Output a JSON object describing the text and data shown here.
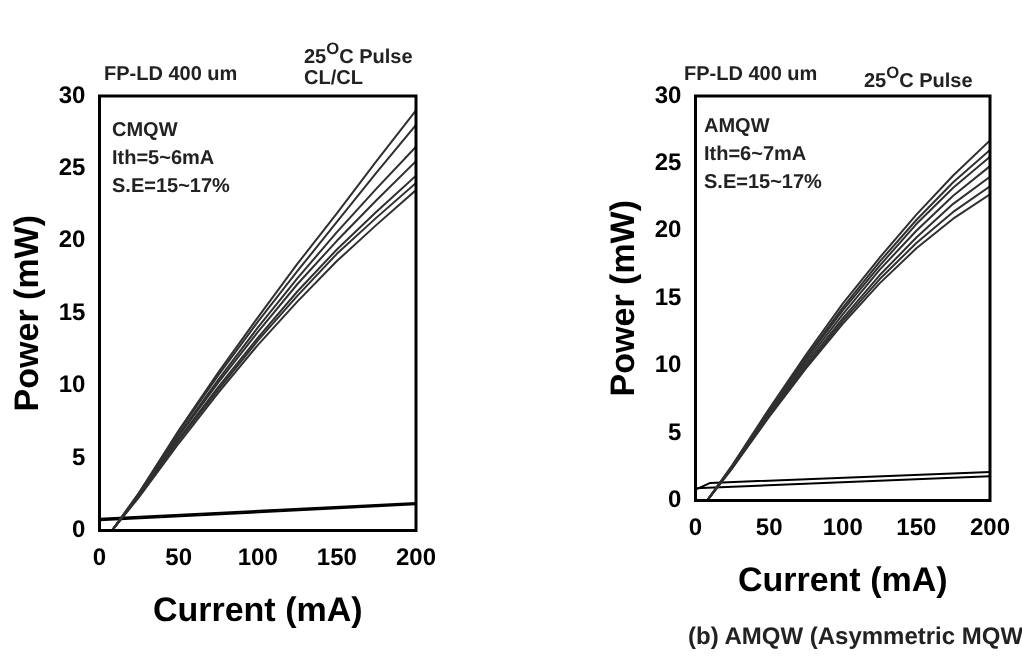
{
  "chart_data": [
    {
      "type": "line",
      "xlabel": "Current (mA)",
      "ylabel": "Power (mW)",
      "xlim": [
        0,
        200
      ],
      "ylim": [
        0,
        30
      ],
      "xticks": [
        0,
        50,
        100,
        150,
        200
      ],
      "yticks": [
        0,
        5,
        10,
        15,
        20,
        25,
        30
      ],
      "grid": false,
      "legend": false,
      "marker": "none",
      "line_style": "solid",
      "annotations": [
        "FP-LD 400 um",
        "25$^{O}$C Pulse",
        "CL/CL",
        "CMQW",
        "Ith=5~6mA",
        "S.E=15~17%"
      ],
      "series": [
        {
          "color": "#303030",
          "x": [
            8,
            25,
            50,
            75,
            100,
            125,
            150,
            175,
            200
          ],
          "values": [
            0,
            2.6,
            6.9,
            10.9,
            14.7,
            18.4,
            21.9,
            25.5,
            29
          ]
        },
        {
          "color": "#303030",
          "x": [
            8,
            25,
            50,
            75,
            100,
            125,
            150,
            175,
            200
          ],
          "values": [
            0,
            2.6,
            6.8,
            10.7,
            14.4,
            17.9,
            21.3,
            24.7,
            28
          ]
        },
        {
          "color": "#303030",
          "x": [
            8,
            25,
            50,
            75,
            100,
            125,
            150,
            175,
            200
          ],
          "values": [
            0,
            2.5,
            6.6,
            10.4,
            14,
            17.4,
            20.6,
            23.6,
            26.5
          ]
        },
        {
          "color": "#303030",
          "x": [
            8,
            25,
            50,
            75,
            100,
            125,
            150,
            175,
            200
          ],
          "values": [
            0,
            2.5,
            6.5,
            10.2,
            13.7,
            17,
            20,
            22.8,
            25.5
          ]
        },
        {
          "color": "#303030",
          "x": [
            8,
            25,
            50,
            75,
            100,
            125,
            150,
            175,
            200
          ],
          "values": [
            0,
            2.4,
            6.3,
            9.9,
            13.3,
            16.5,
            19.4,
            22,
            24.5
          ]
        },
        {
          "color": "#303030",
          "x": [
            8,
            25,
            50,
            75,
            100,
            125,
            150,
            175,
            200
          ],
          "values": [
            0,
            2.4,
            6.2,
            9.7,
            13.1,
            16.2,
            19.1,
            21.6,
            24
          ]
        },
        {
          "color": "#303030",
          "x": [
            8,
            25,
            50,
            75,
            100,
            125,
            150,
            175,
            200
          ],
          "values": [
            0,
            2.3,
            6,
            9.5,
            12.8,
            15.8,
            18.6,
            21.1,
            23.5
          ]
        },
        {
          "color": "#000000",
          "x": [
            0,
            200
          ],
          "values": [
            0.8,
            1.9
          ]
        },
        {
          "color": "#000000",
          "x": [
            0,
            200
          ],
          "values": [
            0.7,
            1.8
          ]
        }
      ]
    },
    {
      "type": "line",
      "xlabel": "Current (mA)",
      "ylabel": "Power (mW)",
      "xlim": [
        0,
        200
      ],
      "ylim": [
        0,
        30
      ],
      "xticks": [
        0,
        50,
        100,
        150,
        200
      ],
      "yticks": [
        0,
        5,
        10,
        15,
        20,
        25,
        30
      ],
      "grid": false,
      "legend": false,
      "marker": "none",
      "line_style": "solid",
      "annotations": [
        "FP-LD 400 um",
        "25$^{O}$C Pulse",
        "AMQW",
        "Ith=6~7mA",
        "S.E=15~17%",
        "(b) AMQW (Asymmetric MQW"
      ],
      "series": [
        {
          "color": "#303030",
          "x": [
            8,
            25,
            50,
            75,
            100,
            125,
            150,
            175,
            200
          ],
          "values": [
            0,
            2.6,
            6.8,
            10.8,
            14.6,
            18,
            21.2,
            24.1,
            26.7
          ]
        },
        {
          "color": "#303030",
          "x": [
            8,
            25,
            50,
            75,
            100,
            125,
            150,
            175,
            200
          ],
          "values": [
            0,
            2.6,
            6.7,
            10.6,
            14.3,
            17.7,
            20.8,
            23.6,
            26
          ]
        },
        {
          "color": "#303030",
          "x": [
            8,
            25,
            50,
            75,
            100,
            125,
            150,
            175,
            200
          ],
          "values": [
            0,
            2.5,
            6.6,
            10.5,
            14.1,
            17.4,
            20.5,
            23.2,
            25.5
          ]
        },
        {
          "color": "#303030",
          "x": [
            8,
            25,
            50,
            75,
            100,
            125,
            150,
            175,
            200
          ],
          "values": [
            0,
            2.5,
            6.5,
            10.3,
            13.8,
            17.1,
            20,
            22.6,
            24.8
          ]
        },
        {
          "color": "#303030",
          "x": [
            8,
            25,
            50,
            75,
            100,
            125,
            150,
            175,
            200
          ],
          "values": [
            0,
            2.5,
            6.4,
            10.1,
            13.5,
            16.7,
            19.5,
            22,
            24
          ]
        },
        {
          "color": "#303030",
          "x": [
            8,
            25,
            50,
            75,
            100,
            125,
            150,
            175,
            200
          ],
          "values": [
            0,
            2.4,
            6.3,
            9.9,
            13.3,
            16.4,
            19.1,
            21.4,
            23.3
          ]
        },
        {
          "color": "#303030",
          "x": [
            8,
            25,
            50,
            75,
            100,
            125,
            150,
            175,
            200
          ],
          "values": [
            0,
            2.4,
            6.2,
            9.8,
            13.1,
            16.1,
            18.7,
            20.9,
            22.7
          ]
        },
        {
          "color": "#000000",
          "x": [
            0,
            10,
            200
          ],
          "values": [
            0.8,
            1.3,
            2.1
          ]
        },
        {
          "color": "#000000",
          "x": [
            0,
            200
          ],
          "values": [
            0.9,
            1.8
          ]
        }
      ]
    }
  ]
}
